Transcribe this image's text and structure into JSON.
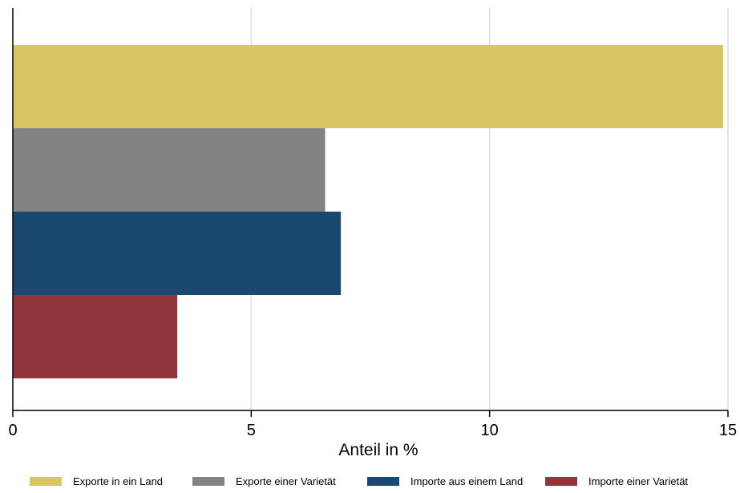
{
  "chart_data": {
    "type": "bar",
    "orientation": "horizontal",
    "title": "",
    "xlabel": "Anteil in %",
    "ylabel": "",
    "xlim": [
      0,
      15
    ],
    "xticks": [
      0,
      5,
      10,
      15
    ],
    "grid": true,
    "legend_position": "bottom",
    "series": [
      {
        "name": "Exporte in ein Land",
        "value": 14.9,
        "color": "#D9C466"
      },
      {
        "name": "Exporte einer Varietät",
        "value": 6.55,
        "color": "#838383"
      },
      {
        "name": "Importe aus einem Land",
        "value": 6.88,
        "color": "#1B4870"
      },
      {
        "name": "Importe einer Varietät",
        "value": 3.45,
        "color": "#90353C"
      }
    ]
  }
}
